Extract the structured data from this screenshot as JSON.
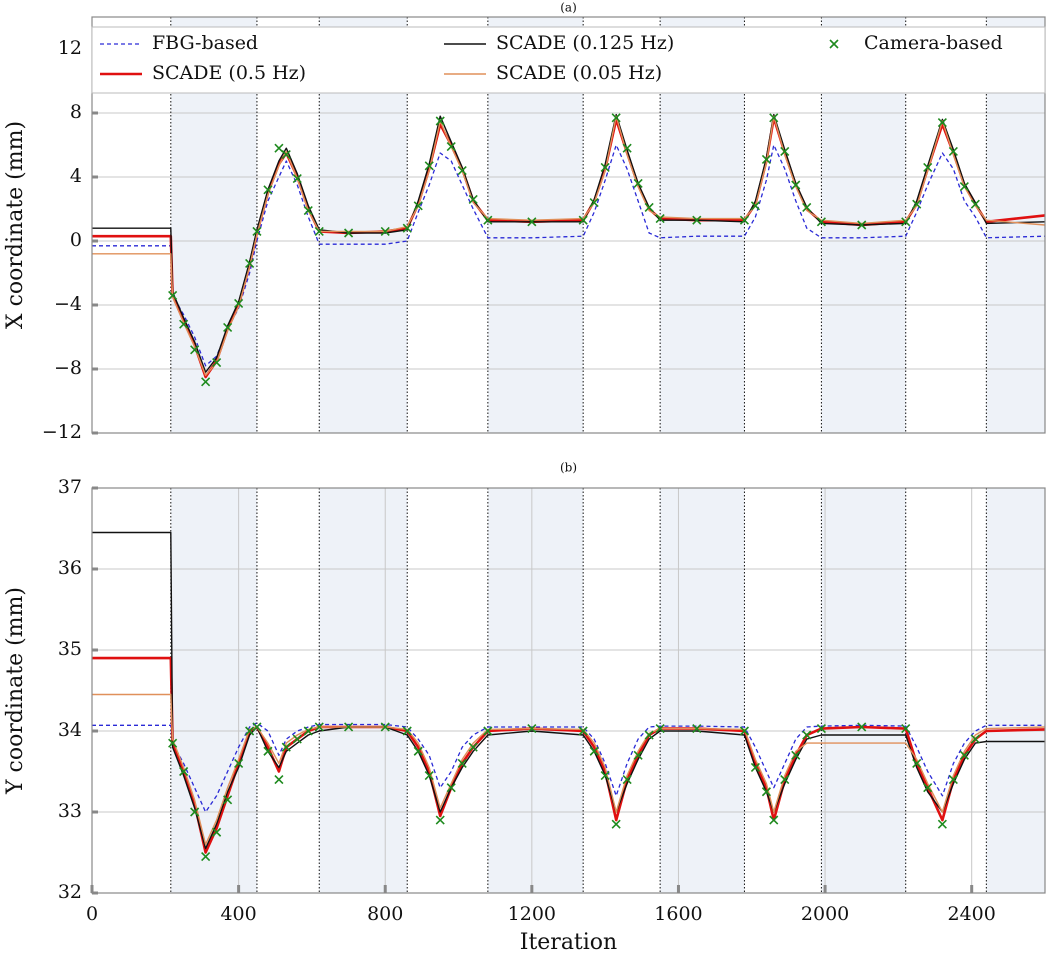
{
  "chart_data": [
    {
      "type": "line",
      "title": "(a)",
      "ylabel": "X coordinate (mm)",
      "x": [
        0,
        215,
        220,
        250,
        280,
        310,
        340,
        370,
        400,
        430,
        450,
        480,
        510,
        530,
        560,
        590,
        620,
        700,
        800,
        860,
        890,
        920,
        950,
        980,
        1010,
        1040,
        1080,
        1200,
        1340,
        1370,
        1400,
        1430,
        1460,
        1490,
        1520,
        1550,
        1650,
        1780,
        1810,
        1840,
        1860,
        1890,
        1920,
        1950,
        1990,
        2100,
        2220,
        2250,
        2280,
        2320,
        2350,
        2380,
        2410,
        2440,
        2600
      ],
      "xlim": [
        0,
        2600
      ],
      "ylim": [
        -12,
        14
      ],
      "yticks": [
        {
          "value": -12,
          "label": "−12"
        },
        {
          "value": -8,
          "label": "−8"
        },
        {
          "value": -4,
          "label": "−4"
        },
        0,
        4,
        8,
        12
      ],
      "grid": true,
      "legend": "top",
      "vlines": [
        215,
        450,
        620,
        860,
        1080,
        1340,
        1550,
        1780,
        1990,
        2220,
        2440
      ],
      "series": [
        {
          "name": "FBG-based",
          "color": "#2a2ad6",
          "style": "dashed",
          "values": [
            -0.3,
            -0.3,
            -3.4,
            -4.6,
            -6,
            -7.8,
            -7.2,
            -5.5,
            -4.2,
            -2,
            0,
            2.5,
            4,
            5,
            3.5,
            1.5,
            -0.2,
            -0.2,
            -0.2,
            0,
            1.8,
            3.5,
            5.5,
            5,
            3.5,
            2,
            0.2,
            0.2,
            0.3,
            1.8,
            3.8,
            6,
            4.5,
            2.5,
            0.5,
            0.2,
            0.3,
            0.3,
            1.5,
            3.8,
            6,
            4.5,
            2.5,
            0.8,
            0.2,
            0.2,
            0.3,
            1.8,
            3.5,
            5.5,
            4.5,
            2.5,
            1.5,
            0.2,
            0.3
          ]
        },
        {
          "name": "SCADE (0.5 Hz)",
          "color": "#e01010",
          "style": "thick",
          "values": [
            0.3,
            0.3,
            -3.4,
            -5,
            -6.5,
            -8.5,
            -7.5,
            -5.5,
            -4,
            -1.5,
            0.5,
            3,
            4.8,
            5.5,
            4,
            2,
            0.6,
            0.5,
            0.6,
            0.8,
            2.3,
            4.5,
            7.3,
            6,
            4.5,
            2.5,
            1.3,
            1.2,
            1.3,
            2.5,
            4.5,
            7.6,
            5.5,
            3.5,
            2,
            1.4,
            1.3,
            1.3,
            2.3,
            5,
            7.7,
            5.5,
            3.5,
            2,
            1.2,
            1,
            1.2,
            2.3,
            4.5,
            7.3,
            5.5,
            3.5,
            2.3,
            1.2,
            1.6
          ]
        },
        {
          "name": "SCADE (0.125 Hz)",
          "color": "#111111",
          "style": "solid",
          "values": [
            0.8,
            0.8,
            -3.2,
            -4.8,
            -6.3,
            -8.2,
            -7.3,
            -5.3,
            -3.8,
            -1.3,
            0.7,
            3.2,
            5,
            5.8,
            4.2,
            2.2,
            0.7,
            0.5,
            0.5,
            0.7,
            2.5,
            4.8,
            7.8,
            6.2,
            4.6,
            2.6,
            1.2,
            1.2,
            1.2,
            2.6,
            4.8,
            7.9,
            5.7,
            3.6,
            2.1,
            1.3,
            1.3,
            1.2,
            2.5,
            5.2,
            7.9,
            5.7,
            3.6,
            2.1,
            1.1,
            1,
            1.1,
            2.5,
            4.7,
            7.6,
            5.7,
            3.6,
            2.4,
            1.1,
            1.2
          ]
        },
        {
          "name": "SCADE (0.05 Hz)",
          "color": "#e0905a",
          "style": "solid",
          "values": [
            -0.8,
            -0.8,
            -3.5,
            -5.1,
            -6.6,
            -8.4,
            -7.6,
            -5.6,
            -4.1,
            -1.6,
            0.4,
            2.9,
            4.7,
            5.6,
            3.9,
            1.9,
            0.6,
            0.6,
            0.6,
            0.9,
            2.2,
            4.4,
            7.5,
            5.9,
            4.4,
            2.4,
            1.4,
            1.3,
            1.4,
            2.4,
            4.4,
            7.8,
            5.4,
            3.4,
            1.9,
            1.5,
            1.4,
            1.4,
            2.2,
            4.9,
            7.8,
            5.4,
            3.4,
            1.9,
            1.3,
            1.1,
            1.3,
            2.2,
            4.4,
            7.5,
            5.4,
            3.4,
            2.2,
            1.3,
            1.0
          ]
        },
        {
          "name": "Camera-based",
          "color": "#1e8a1e",
          "style": "marker",
          "values": [
            null,
            null,
            -3.4,
            -5.2,
            -6.8,
            -8.8,
            -7.6,
            -5.4,
            -3.9,
            -1.4,
            0.6,
            3.2,
            5.8,
            5.4,
            3.9,
            1.9,
            0.6,
            0.5,
            0.6,
            0.8,
            2.2,
            4.7,
            7.5,
            5.9,
            4.4,
            2.6,
            1.3,
            1.2,
            1.3,
            2.4,
            4.6,
            7.7,
            5.8,
            3.6,
            2.1,
            1.4,
            1.3,
            1.3,
            2.2,
            5.1,
            7.7,
            5.6,
            3.5,
            2.1,
            1.2,
            1,
            1.2,
            2.3,
            4.6,
            7.4,
            5.6,
            3.4,
            2.3,
            null,
            null
          ]
        }
      ]
    },
    {
      "type": "line",
      "title": "(b)",
      "ylabel": "Y coordinate (mm)",
      "xlabel": "Iteration",
      "x": [
        0,
        215,
        220,
        250,
        280,
        310,
        340,
        370,
        400,
        430,
        450,
        480,
        510,
        530,
        560,
        590,
        620,
        700,
        800,
        860,
        890,
        920,
        950,
        980,
        1010,
        1040,
        1080,
        1200,
        1340,
        1370,
        1400,
        1430,
        1460,
        1490,
        1520,
        1550,
        1650,
        1780,
        1810,
        1840,
        1860,
        1890,
        1920,
        1950,
        1990,
        2100,
        2220,
        2250,
        2280,
        2320,
        2350,
        2380,
        2410,
        2440,
        2600
      ],
      "xlim": [
        0,
        2600
      ],
      "xticks": [
        0,
        400,
        800,
        1200,
        1600,
        2000,
        2400
      ],
      "ylim": [
        32,
        37
      ],
      "yticks": [
        32,
        33,
        34,
        35,
        36,
        37
      ],
      "grid": true,
      "vlines": [
        215,
        450,
        620,
        860,
        1080,
        1340,
        1550,
        1780,
        1990,
        2220,
        2440
      ],
      "series": [
        {
          "name": "FBG-based",
          "color": "#2a2ad6",
          "style": "dashed",
          "values": [
            34.07,
            34.07,
            33.85,
            33.6,
            33.3,
            33.0,
            33.2,
            33.5,
            33.8,
            34.05,
            34.1,
            34.0,
            33.7,
            33.9,
            34.0,
            34.05,
            34.08,
            34.08,
            34.08,
            34.05,
            33.9,
            33.7,
            33.3,
            33.5,
            33.8,
            33.95,
            34.05,
            34.05,
            34.05,
            33.9,
            33.6,
            33.2,
            33.6,
            33.9,
            34.05,
            34.06,
            34.06,
            34.05,
            33.8,
            33.5,
            33.3,
            33.6,
            33.9,
            34.05,
            34.06,
            34.07,
            34.06,
            33.8,
            33.5,
            33.2,
            33.6,
            33.85,
            34.0,
            34.07,
            34.07
          ]
        },
        {
          "name": "SCADE (0.5 Hz)",
          "color": "#e01010",
          "style": "thick",
          "values": [
            34.9,
            34.9,
            33.85,
            33.5,
            33.1,
            32.5,
            32.8,
            33.2,
            33.6,
            34.0,
            34.05,
            33.8,
            33.5,
            33.8,
            33.9,
            34.0,
            34.05,
            34.05,
            34.05,
            34.0,
            33.8,
            33.5,
            32.95,
            33.3,
            33.6,
            33.8,
            34.0,
            34.03,
            34.0,
            33.8,
            33.5,
            32.9,
            33.4,
            33.7,
            33.95,
            34.03,
            34.03,
            34.0,
            33.6,
            33.3,
            32.9,
            33.4,
            33.7,
            33.95,
            34.03,
            34.05,
            34.03,
            33.6,
            33.3,
            32.9,
            33.4,
            33.7,
            33.9,
            34.0,
            34.02
          ]
        },
        {
          "name": "SCADE (0.125 Hz)",
          "color": "#111111",
          "style": "solid",
          "values": [
            36.45,
            36.45,
            33.8,
            33.45,
            33.05,
            32.55,
            32.85,
            33.25,
            33.55,
            33.95,
            34.05,
            33.75,
            33.55,
            33.75,
            33.85,
            33.95,
            34.0,
            34.05,
            34.05,
            33.95,
            33.75,
            33.45,
            33.0,
            33.3,
            33.55,
            33.75,
            33.95,
            34.0,
            33.95,
            33.75,
            33.45,
            33.0,
            33.35,
            33.65,
            33.9,
            34.0,
            34.0,
            33.95,
            33.55,
            33.25,
            33.0,
            33.35,
            33.65,
            33.9,
            33.95,
            33.95,
            33.95,
            33.55,
            33.25,
            33.0,
            33.35,
            33.65,
            33.85,
            33.87,
            33.87
          ]
        },
        {
          "name": "SCADE (0.05 Hz)",
          "color": "#e0905a",
          "style": "solid",
          "values": [
            34.45,
            34.45,
            33.9,
            33.55,
            33.15,
            32.6,
            32.9,
            33.3,
            33.65,
            34.02,
            34.05,
            33.85,
            33.6,
            33.85,
            33.95,
            34.02,
            34.05,
            34.05,
            34.05,
            34.02,
            33.85,
            33.55,
            33.05,
            33.35,
            33.65,
            33.85,
            34.02,
            34.03,
            34.02,
            33.85,
            33.55,
            33.0,
            33.45,
            33.75,
            33.97,
            34.03,
            34.03,
            34.02,
            33.65,
            33.35,
            33.0,
            33.45,
            33.75,
            33.85,
            33.85,
            33.85,
            33.85,
            33.65,
            33.35,
            33.0,
            33.45,
            33.75,
            33.95,
            34.03,
            34.05
          ]
        },
        {
          "name": "Camera-based",
          "color": "#1e8a1e",
          "style": "marker",
          "values": [
            null,
            null,
            33.85,
            33.5,
            33.0,
            32.45,
            32.75,
            33.15,
            33.6,
            34.0,
            34.05,
            33.75,
            33.4,
            33.8,
            33.9,
            34.0,
            34.05,
            34.05,
            34.05,
            34.0,
            33.75,
            33.45,
            32.9,
            33.3,
            33.6,
            33.8,
            34.0,
            34.03,
            34.0,
            33.75,
            33.45,
            32.85,
            33.4,
            33.7,
            33.95,
            34.03,
            34.03,
            34.0,
            33.55,
            33.25,
            32.9,
            33.4,
            33.7,
            33.95,
            34.03,
            34.05,
            34.03,
            33.6,
            33.3,
            32.85,
            33.4,
            33.7,
            33.9,
            null,
            null
          ]
        }
      ]
    }
  ]
}
